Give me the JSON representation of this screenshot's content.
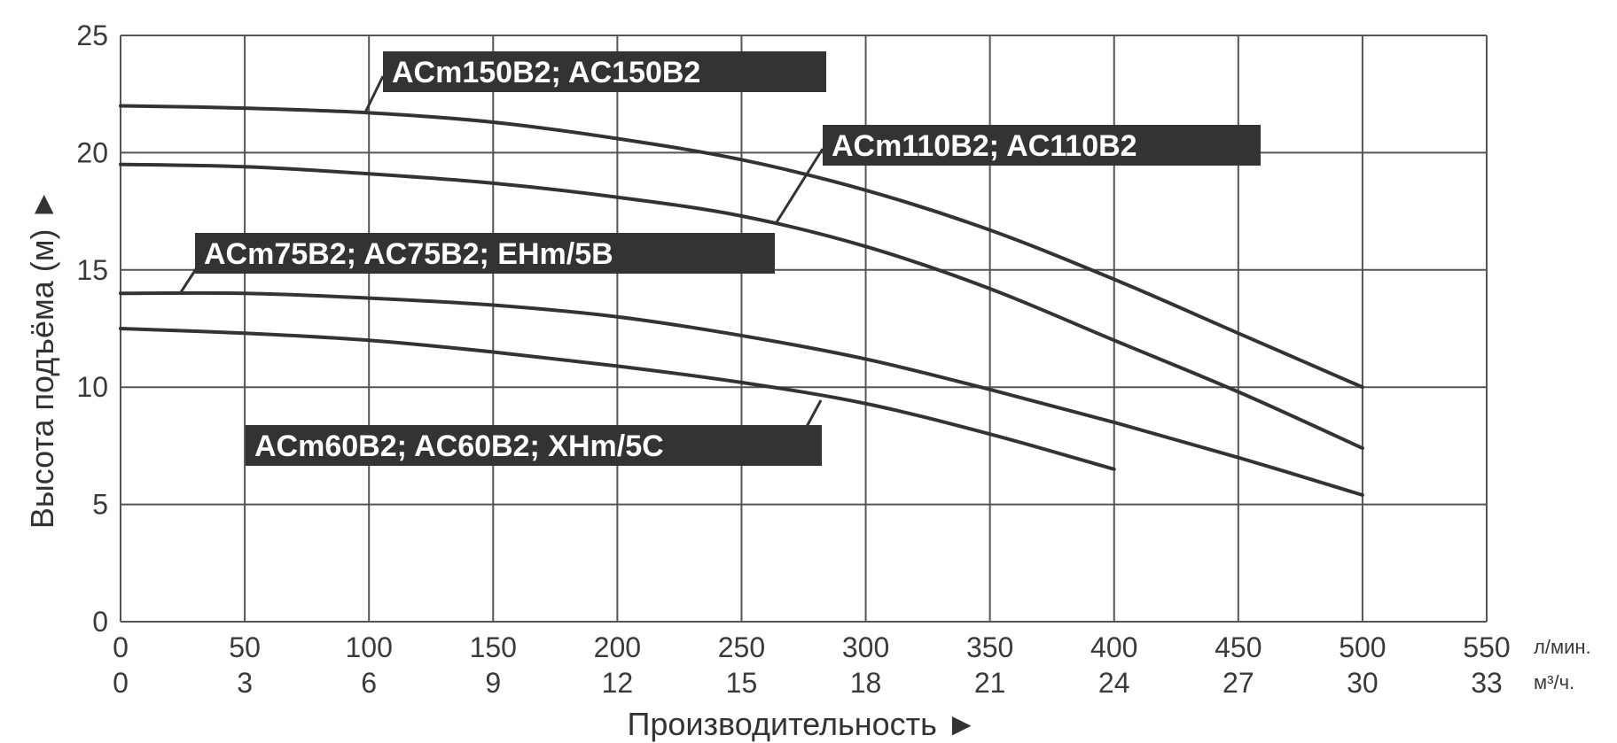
{
  "chart_data": {
    "type": "line",
    "xlabel": "Производительность ►",
    "ylabel": "Высота подъёма (м) ►",
    "x_unit": "л/мин.",
    "x2_unit": "м³/ч.",
    "xlim": [
      0,
      550
    ],
    "ylim": [
      0,
      25
    ],
    "x_ticks": [
      "0",
      "50",
      "100",
      "150",
      "200",
      "250",
      "300",
      "350",
      "400",
      "450",
      "500",
      "550"
    ],
    "x2_ticks": [
      "0",
      "3",
      "6",
      "9",
      "12",
      "15",
      "18",
      "21",
      "24",
      "27",
      "30",
      "33"
    ],
    "y_ticks": [
      "0",
      "5",
      "10",
      "15",
      "20",
      "25"
    ],
    "grid": true,
    "series": [
      {
        "name": "ACm150B2; AC150B2",
        "x": [
          0,
          50,
          100,
          150,
          200,
          250,
          300,
          350,
          400,
          450,
          500
        ],
        "y": [
          22.0,
          21.9,
          21.7,
          21.3,
          20.6,
          19.7,
          18.4,
          16.7,
          14.6,
          12.3,
          10.0
        ]
      },
      {
        "name": "ACm110B2; AC110B2",
        "x": [
          0,
          50,
          100,
          150,
          200,
          250,
          300,
          350,
          400,
          450,
          500
        ],
        "y": [
          19.5,
          19.4,
          19.1,
          18.7,
          18.1,
          17.3,
          16.0,
          14.2,
          12.0,
          9.8,
          7.4
        ]
      },
      {
        "name": "ACm75B2; AC75B2; EHm/5B",
        "x": [
          0,
          50,
          100,
          150,
          200,
          250,
          300,
          350,
          400,
          450,
          500
        ],
        "y": [
          14.0,
          14.0,
          13.8,
          13.5,
          13.0,
          12.2,
          11.2,
          9.9,
          8.5,
          7.0,
          5.4
        ]
      },
      {
        "name": "ACm60B2; AC60B2; XHm/5C",
        "x": [
          0,
          50,
          100,
          150,
          200,
          250,
          300,
          350,
          400
        ],
        "y": [
          12.5,
          12.3,
          12.0,
          11.5,
          10.9,
          10.2,
          9.3,
          8.0,
          6.5
        ]
      }
    ],
    "colors": {
      "line": "#333333",
      "grid": "#555555",
      "label_bg": "#333333",
      "label_text": "#ffffff"
    }
  }
}
